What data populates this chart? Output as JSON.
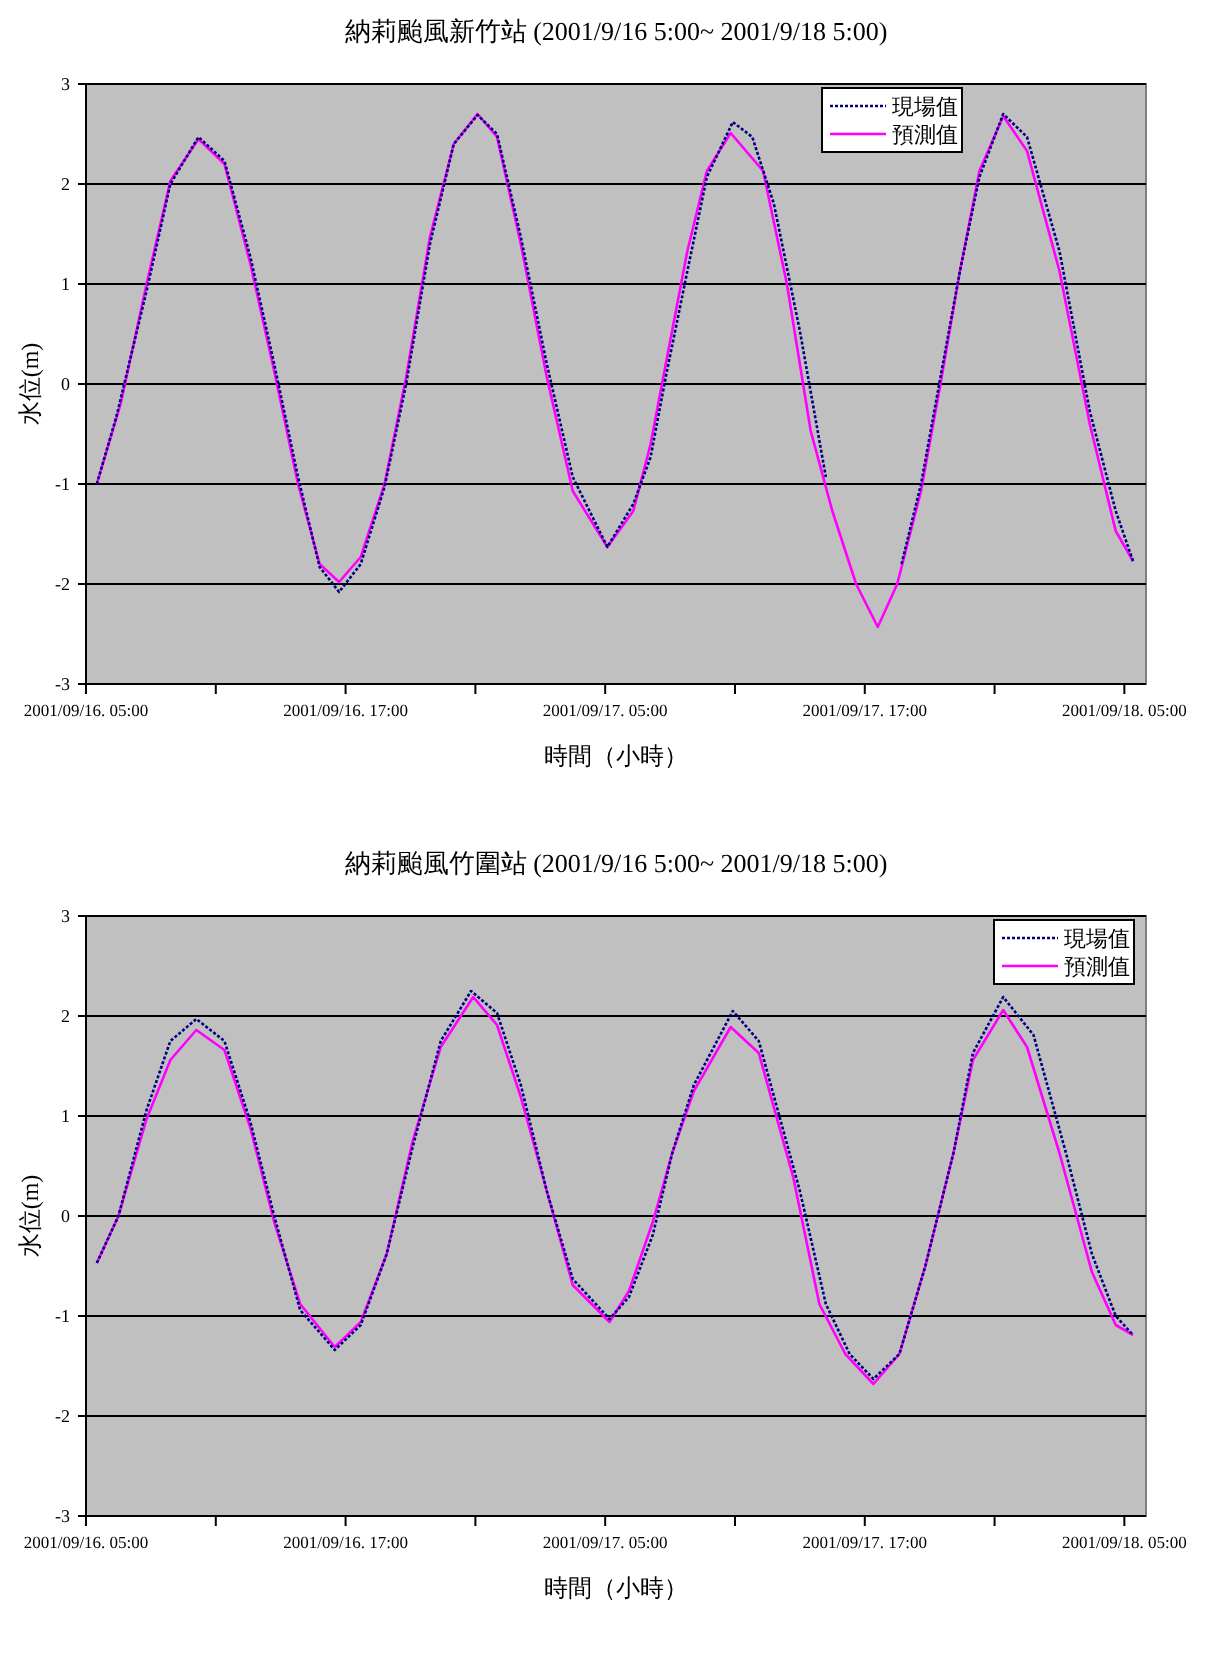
{
  "chart_data": [
    {
      "type": "line",
      "title": "納莉颱風新竹站 (2001/9/16 5:00~ 2001/9/18 5:00)",
      "xlabel": "時間（小時）",
      "ylabel": "水位(m)",
      "xlim": [
        "2001-09-16T05:00",
        "2001-09-18T06:00"
      ],
      "ylim": [
        -3,
        3
      ],
      "xticks": [
        {
          "value": "2001-09-16T05:00",
          "label": "2001/09/16. 05:00"
        },
        {
          "value": "2001-09-16T11:00",
          "label": null
        },
        {
          "value": "2001-09-16T17:00",
          "label": "2001/09/16. 17:00"
        },
        {
          "value": "2001-09-16T23:00",
          "label": null
        },
        {
          "value": "2001-09-17T05:00",
          "label": "2001/09/17. 05:00"
        },
        {
          "value": "2001-09-17T11:00",
          "label": null
        },
        {
          "value": "2001-09-17T17:00",
          "label": "2001/09/17. 17:00"
        },
        {
          "value": "2001-09-17T23:00",
          "label": null
        },
        {
          "value": "2001-09-18T05:00",
          "label": "2001/09/18. 05:00"
        }
      ],
      "yticks": [
        -3,
        -2,
        -1,
        0,
        1,
        2,
        3
      ],
      "grid": "y",
      "legend": "top right",
      "series": [
        {
          "name": "現場值",
          "color": "#000080",
          "line_style": "dotted",
          "x": [
            "2001-09-16T05:30",
            "2001-09-16T06:24",
            "2001-09-16T07:48",
            "2001-09-16T08:54",
            "2001-09-16T10:12",
            "2001-09-16T11:24",
            "2001-09-16T12:36",
            "2001-09-16T13:42",
            "2001-09-16T14:48",
            "2001-09-16T15:48",
            "2001-09-16T16:42",
            "2001-09-16T17:42",
            "2001-09-16T18:48",
            "2001-09-16T19:48",
            "2001-09-16T20:54",
            "2001-09-16T22:00",
            "2001-09-16T23:06",
            "2001-09-17T00:00",
            "2001-09-17T01:06",
            "2001-09-17T02:18",
            "2001-09-17T03:30",
            "2001-09-17T05:06",
            "2001-09-17T06:18",
            "2001-09-17T07:06",
            "2001-09-17T07:48",
            "2001-09-17T08:48",
            "2001-09-17T09:42",
            "2001-09-17T10:54",
            "2001-09-17T11:48",
            "2001-09-17T12:48",
            "2001-09-17T14:00",
            "2001-09-17T15:12",
            null,
            "2001-09-17T18:42",
            "2001-09-17T19:36",
            "2001-09-17T20:30",
            "2001-09-17T21:24",
            "2001-09-17T22:18",
            "2001-09-17T23:24",
            "2001-09-18T00:30",
            "2001-09-18T02:00",
            "2001-09-18T03:24",
            "2001-09-18T04:36",
            "2001-09-18T05:24"
          ],
          "values": [
            -1.0,
            -0.33,
            0.93,
            2.0,
            2.47,
            2.23,
            1.27,
            0.2,
            -0.93,
            -1.83,
            -2.08,
            -1.8,
            -1.03,
            0.0,
            1.4,
            2.4,
            2.69,
            2.5,
            1.47,
            0.2,
            -0.93,
            -1.63,
            -1.2,
            -0.73,
            0.07,
            1.13,
            2.07,
            2.62,
            2.47,
            1.8,
            0.53,
            -0.93,
            null,
            -1.8,
            -1.0,
            0.07,
            1.13,
            2.07,
            2.7,
            2.47,
            1.33,
            -0.27,
            -1.27,
            -1.77
          ]
        },
        {
          "name": "預測值",
          "color": "#ff00ff",
          "line_style": "solid",
          "x": [
            "2001-09-16T05:30",
            "2001-09-16T06:36",
            "2001-09-16T07:48",
            "2001-09-16T08:54",
            "2001-09-16T10:12",
            "2001-09-16T11:24",
            "2001-09-16T12:36",
            "2001-09-16T13:42",
            "2001-09-16T14:48",
            "2001-09-16T15:48",
            "2001-09-16T16:42",
            "2001-09-16T17:42",
            "2001-09-16T18:48",
            "2001-09-16T19:48",
            "2001-09-16T20:54",
            "2001-09-16T22:00",
            "2001-09-16T23:06",
            "2001-09-17T00:00",
            "2001-09-17T01:06",
            "2001-09-17T02:18",
            "2001-09-17T03:30",
            "2001-09-17T05:06",
            "2001-09-17T06:18",
            "2001-09-17T07:06",
            "2001-09-17T07:48",
            "2001-09-17T08:48",
            "2001-09-17T09:42",
            "2001-09-17T10:48",
            "2001-09-17T12:18",
            "2001-09-17T13:24",
            "2001-09-17T14:30",
            "2001-09-17T15:30",
            "2001-09-17T16:36",
            "2001-09-17T17:36",
            "2001-09-17T18:30",
            "2001-09-17T19:36",
            "2001-09-17T20:30",
            "2001-09-17T21:24",
            "2001-09-17T22:18",
            "2001-09-17T23:24",
            "2001-09-18T00:30",
            "2001-09-18T02:00",
            "2001-09-18T03:24",
            "2001-09-18T04:36",
            "2001-09-18T05:24"
          ],
          "values": [
            -1.0,
            -0.2,
            1.0,
            2.03,
            2.45,
            2.2,
            1.2,
            0.13,
            -1.0,
            -1.8,
            -1.98,
            -1.73,
            -1.0,
            0.07,
            1.47,
            2.4,
            2.7,
            2.47,
            1.4,
            0.07,
            -1.07,
            -1.63,
            -1.27,
            -0.6,
            0.2,
            1.33,
            2.13,
            2.51,
            2.13,
            1.0,
            -0.47,
            -1.27,
            -2.0,
            -2.43,
            -2.0,
            -1.07,
            0.0,
            1.13,
            2.13,
            2.68,
            2.33,
            1.13,
            -0.4,
            -1.47,
            -1.77
          ]
        }
      ]
    },
    {
      "type": "line",
      "title": "納莉颱風竹圍站 (2001/9/16 5:00~ 2001/9/18 5:00)",
      "xlabel": "時間（小時）",
      "ylabel": "水位(m)",
      "xlim": [
        "2001-09-16T05:00",
        "2001-09-18T06:00"
      ],
      "ylim": [
        -3,
        3
      ],
      "xticks": [
        {
          "value": "2001-09-16T05:00",
          "label": "2001/09/16. 05:00"
        },
        {
          "value": "2001-09-16T11:00",
          "label": null
        },
        {
          "value": "2001-09-16T17:00",
          "label": "2001/09/16. 17:00"
        },
        {
          "value": "2001-09-16T23:00",
          "label": null
        },
        {
          "value": "2001-09-17T05:00",
          "label": "2001/09/17. 05:00"
        },
        {
          "value": "2001-09-17T11:00",
          "label": null
        },
        {
          "value": "2001-09-17T17:00",
          "label": "2001/09/17. 17:00"
        },
        {
          "value": "2001-09-17T23:00",
          "label": null
        },
        {
          "value": "2001-09-18T05:00",
          "label": "2001/09/18. 05:00"
        }
      ],
      "yticks": [
        -3,
        -2,
        -1,
        0,
        1,
        2,
        3
      ],
      "grid": "y",
      "legend": "top right",
      "series": [
        {
          "name": "現場值",
          "color": "#000080",
          "line_style": "dotted",
          "x": [
            "2001-09-16T05:30",
            "2001-09-16T06:30",
            "2001-09-16T07:48",
            "2001-09-16T08:54",
            "2001-09-16T10:06",
            "2001-09-16T11:24",
            "2001-09-16T12:36",
            "2001-09-16T13:42",
            "2001-09-16T14:54",
            "2001-09-16T16:30",
            "2001-09-16T17:42",
            "2001-09-16T18:54",
            "2001-09-16T20:06",
            "2001-09-16T21:24",
            "2001-09-16T22:48",
            "2001-09-17T00:00",
            "2001-09-17T01:06",
            "2001-09-17T02:18",
            "2001-09-17T03:30",
            "2001-09-17T05:12",
            "2001-09-17T06:06",
            "2001-09-17T07:12",
            "2001-09-17T08:06",
            "2001-09-17T09:06",
            "2001-09-17T10:54",
            "2001-09-17T12:06",
            "2001-09-17T14:00",
            "2001-09-17T15:12",
            "2001-09-17T16:18",
            "2001-09-17T17:24",
            "2001-09-17T18:36",
            "2001-09-17T19:48",
            "2001-09-17T21:06",
            "2001-09-17T22:00",
            "2001-09-17T23:24",
            "2001-09-18T00:48",
            "2001-09-18T02:18",
            "2001-09-18T03:30",
            "2001-09-18T04:36",
            "2001-09-18T05:24"
          ],
          "values": [
            -0.47,
            0.0,
            1.06,
            1.75,
            1.97,
            1.75,
            0.94,
            0.0,
            -0.94,
            -1.34,
            -1.09,
            -0.38,
            0.69,
            1.75,
            2.25,
            2.03,
            1.31,
            0.25,
            -0.63,
            -1.03,
            -0.81,
            -0.19,
            0.63,
            1.31,
            2.05,
            1.75,
            0.25,
            -0.88,
            -1.38,
            -1.63,
            -1.38,
            -0.5,
            0.63,
            1.63,
            2.19,
            1.81,
            0.63,
            -0.38,
            -1.0,
            -1.19
          ]
        },
        {
          "name": "預測值",
          "color": "#ff00ff",
          "line_style": "solid",
          "x": [
            "2001-09-16T05:30",
            "2001-09-16T06:30",
            "2001-09-16T07:48",
            "2001-09-16T08:54",
            "2001-09-16T10:06",
            "2001-09-16T11:24",
            "2001-09-16T12:36",
            "2001-09-16T13:42",
            "2001-09-16T14:54",
            "2001-09-16T16:30",
            "2001-09-16T17:42",
            "2001-09-16T18:54",
            "2001-09-16T20:06",
            "2001-09-16T21:24",
            "2001-09-16T22:54",
            "2001-09-17T00:00",
            "2001-09-17T01:06",
            "2001-09-17T02:18",
            "2001-09-17T03:30",
            "2001-09-17T05:12",
            "2001-09-17T06:06",
            "2001-09-17T07:12",
            "2001-09-17T08:06",
            "2001-09-17T09:06",
            "2001-09-17T10:48",
            "2001-09-17T12:06",
            "2001-09-17T13:42",
            "2001-09-17T14:54",
            "2001-09-17T16:06",
            "2001-09-17T17:24",
            "2001-09-17T18:36",
            "2001-09-17T19:48",
            "2001-09-17T21:06",
            "2001-09-17T22:00",
            "2001-09-17T23:24",
            "2001-09-18T00:30",
            "2001-09-18T02:00",
            "2001-09-18T03:30",
            "2001-09-18T04:36",
            "2001-09-18T05:24"
          ],
          "values": [
            -0.47,
            0.0,
            0.97,
            1.56,
            1.86,
            1.66,
            0.88,
            -0.06,
            -0.88,
            -1.31,
            -1.06,
            -0.38,
            0.75,
            1.69,
            2.19,
            1.91,
            1.19,
            0.25,
            -0.69,
            -1.06,
            -0.75,
            -0.06,
            0.63,
            1.25,
            1.89,
            1.63,
            0.38,
            -0.88,
            -1.38,
            -1.68,
            -1.38,
            -0.5,
            0.63,
            1.56,
            2.06,
            1.69,
            0.63,
            -0.56,
            -1.09,
            -1.19
          ]
        }
      ]
    }
  ]
}
